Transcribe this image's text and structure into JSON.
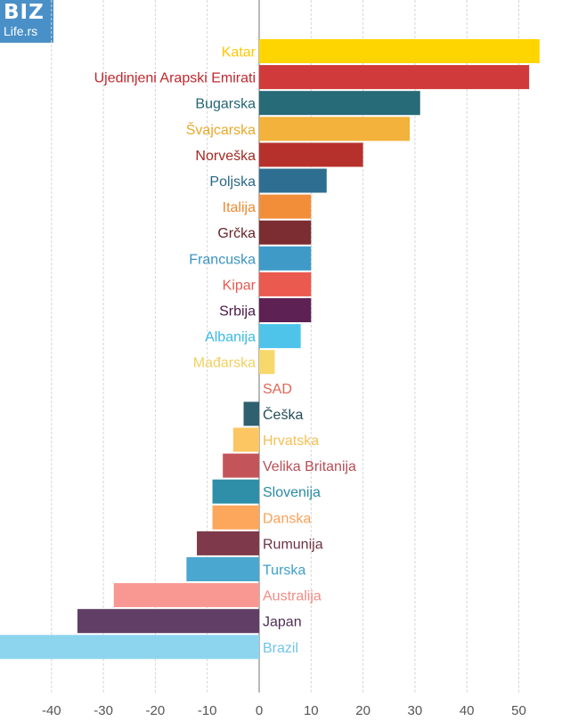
{
  "logo": {
    "main": "BIZ",
    "sub": "Life.rs"
  },
  "chart_data": {
    "type": "bar",
    "orientation": "horizontal",
    "title": "",
    "xlabel": "",
    "ylabel": "",
    "xlim": [
      -50,
      55
    ],
    "xticks": [
      -40,
      -30,
      -20,
      -10,
      0,
      10,
      20,
      30,
      40,
      50
    ],
    "grid": true,
    "categories": [
      "Katar",
      "Ujedinjeni Arapski Emirati",
      "Bugarska",
      "Švajcarska",
      "Norveška",
      "Poljska",
      "Italija",
      "Grčka",
      "Francuska",
      "Kipar",
      "Srbija",
      "Albanija",
      "Mađarska",
      "SAD",
      "Češka",
      "Hrvatska",
      "Velika Britanija",
      "Slovenija",
      "Danska",
      "Rumunija",
      "Turska",
      "Australija",
      "Japan",
      "Brazil"
    ],
    "values": [
      54,
      52,
      31,
      29,
      20,
      13,
      10,
      10,
      10,
      10,
      10,
      8,
      3,
      0,
      -3,
      -5,
      -7,
      -9,
      -9,
      -12,
      -14,
      -28,
      -35,
      -50
    ],
    "colors": [
      "#ffd500",
      "#d03a3a",
      "#276a78",
      "#f3b23c",
      "#b7312c",
      "#2e6f91",
      "#f28e3a",
      "#7c2d32",
      "#3f9ac7",
      "#ea5a4f",
      "#5e2153",
      "#4ec4ea",
      "#f7d86b",
      "#e36c5a",
      "#2e6070",
      "#fcc663",
      "#c3555a",
      "#2f8fa9",
      "#fca75c",
      "#7e3a4a",
      "#4aa7cf",
      "#f99892",
      "#603e66",
      "#8dd4ee"
    ],
    "label_colors": [
      "#ffc800",
      "#c0272d",
      "#236474",
      "#e8a928",
      "#a22a24",
      "#2a6788",
      "#ef8a30",
      "#6a232a",
      "#3b94c0",
      "#e55a52",
      "#4a1945",
      "#3bbbe5",
      "#f2d060",
      "#e06553",
      "#234d58",
      "#f5c055",
      "#b94d55",
      "#2a8aa5",
      "#f8a158",
      "#6e3142",
      "#3f9fc9",
      "#f28c85",
      "#4d2f52",
      "#6fc5e8"
    ]
  }
}
